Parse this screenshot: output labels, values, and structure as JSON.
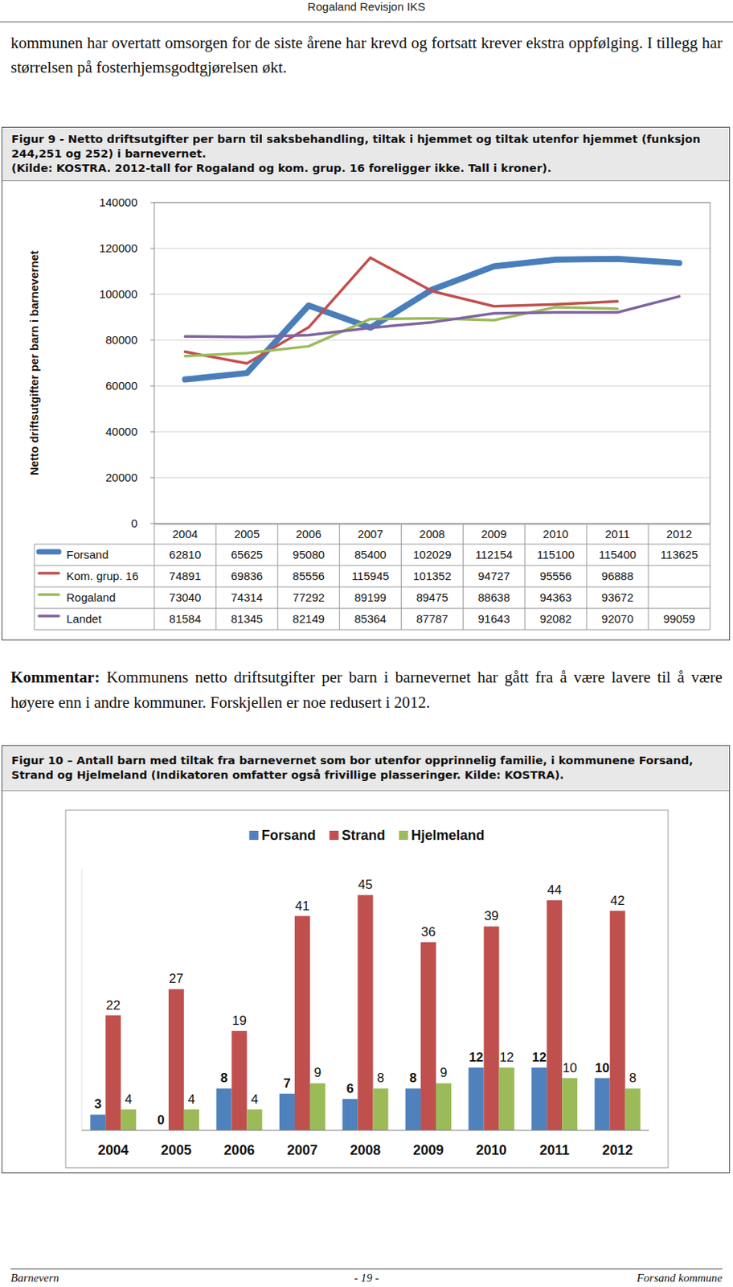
{
  "header": "Rogaland Revisjon IKS",
  "intro": "kommunen har overtatt omsorgen for de siste årene har krevd og fortsatt krever ekstra oppfølging. I tillegg har størrelsen på fosterhjemsgodtgjørelsen økt.",
  "chart_data": [
    {
      "type": "line",
      "title": "Figur 9 - Netto driftsutgifter per barn til saksbehandling, tiltak i hjemmet og tiltak utenfor hjemmet (funksjon 244,251 og 252) i barnevernet.",
      "subtitle": "(Kilde: KOSTRA.  2012-tall for Rogaland og kom. grup. 16 foreligger ikke. Tall i kroner).",
      "y_label": "Netto driftsutgifter per barn i barnevernet",
      "categories": [
        "2004",
        "2005",
        "2006",
        "2007",
        "2008",
        "2009",
        "2010",
        "2011",
        "2012"
      ],
      "series": [
        {
          "name": "Forsand",
          "color": "#4a7ebb",
          "values": [
            62810,
            65625,
            95080,
            85400,
            102029,
            112154,
            115100,
            115400,
            113625
          ]
        },
        {
          "name": "Kom. grup. 16",
          "color": "#c0504d",
          "values": [
            74891,
            69836,
            85556,
            115945,
            101352,
            94727,
            95556,
            96888,
            null
          ]
        },
        {
          "name": "Rogaland",
          "color": "#9bbb59",
          "values": [
            73040,
            74314,
            77292,
            89199,
            89475,
            88638,
            94363,
            93672,
            null
          ]
        },
        {
          "name": "Landet",
          "color": "#8064a2",
          "values": [
            81584,
            81345,
            82149,
            85364,
            87787,
            91643,
            92082,
            92070,
            99059
          ]
        }
      ],
      "ylim": [
        0,
        140000
      ],
      "yticks": [
        0,
        20000,
        40000,
        60000,
        80000,
        100000,
        120000,
        140000
      ],
      "grid": true
    },
    {
      "type": "bar",
      "title": "Figur 10 – Antall barn med tiltak fra barnevernet som bor utenfor opprinnelig familie, i kommunene Forsand, Strand og Hjelmeland  (Indikatoren omfatter også frivillige plasseringer. Kilde: KOSTRA).",
      "categories": [
        "2004",
        "2005",
        "2006",
        "2007",
        "2008",
        "2009",
        "2010",
        "2011",
        "2012"
      ],
      "series": [
        {
          "name": "Forsand",
          "color": "#4f81bd",
          "values": [
            3,
            0,
            8,
            7,
            6,
            8,
            12,
            12,
            10
          ]
        },
        {
          "name": "Strand",
          "color": "#c0504d",
          "values": [
            22,
            27,
            19,
            41,
            45,
            36,
            39,
            44,
            42
          ]
        },
        {
          "name": "Hjelmeland",
          "color": "#9bbb59",
          "values": [
            4,
            4,
            4,
            9,
            8,
            9,
            12,
            10,
            8
          ]
        }
      ],
      "ylim": [
        0,
        50
      ],
      "legend": "top",
      "data_labels": true,
      "tick_labels": "x"
    }
  ],
  "comment": {
    "label": "Kommentar:",
    "text": "Kommunens netto driftsutgifter per barn i barnevernet har gått fra å være lavere til å være høyere enn i andre kommuner. Forskjellen er noe redusert i 2012."
  },
  "footer": {
    "left": "Barnevern",
    "center": "- 19 -",
    "right": "Forsand kommune"
  }
}
